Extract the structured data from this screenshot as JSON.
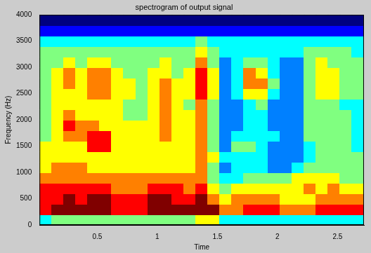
{
  "chart_data": {
    "type": "heatmap",
    "title": "spectrogram of output signal",
    "x_label": "Time",
    "y_label": "Frequency (Hz)",
    "xlim": [
      0.02,
      2.72
    ],
    "xticks": [
      0.5,
      1,
      1.5,
      2,
      2.5
    ],
    "ylim": [
      0,
      4000
    ],
    "yticks": [
      0,
      500,
      1000,
      1500,
      2000,
      2500,
      3000,
      3500,
      4000
    ],
    "grid": false,
    "x": [
      0.07,
      0.17,
      0.27,
      0.37,
      0.47,
      0.57,
      0.67,
      0.77,
      0.87,
      0.97,
      1.07,
      1.17,
      1.27,
      1.37,
      1.47,
      1.57,
      1.67,
      1.77,
      1.87,
      1.97,
      2.07,
      2.17,
      2.27,
      2.37,
      2.47,
      2.57,
      2.67
    ],
    "y": [
      100,
      300,
      500,
      700,
      900,
      1100,
      1300,
      1500,
      1700,
      1900,
      2100,
      2300,
      2500,
      2700,
      2900,
      3100,
      3300,
      3500,
      3700,
      3900
    ],
    "cells": [
      [
        4,
        8,
        8,
        8,
        7,
        6,
        6,
        6,
        5,
        5,
        5,
        5,
        5,
        5,
        5,
        5,
        5,
        4,
        2,
        1
      ],
      [
        5,
        9,
        8,
        8,
        7,
        7,
        6,
        6,
        6,
        6,
        6,
        6,
        6,
        6,
        6,
        5,
        5,
        4,
        2,
        1
      ],
      [
        5,
        9,
        9,
        8,
        7,
        7,
        6,
        6,
        7,
        8,
        7,
        6,
        6,
        7,
        7,
        6,
        5,
        4,
        2,
        1
      ],
      [
        5,
        9,
        8,
        8,
        7,
        7,
        6,
        6,
        7,
        7,
        6,
        6,
        6,
        6,
        6,
        5,
        5,
        4,
        2,
        1
      ],
      [
        5,
        9,
        9,
        8,
        7,
        6,
        6,
        8,
        8,
        7,
        6,
        6,
        7,
        7,
        7,
        6,
        5,
        4,
        2,
        1
      ],
      [
        5,
        9,
        9,
        8,
        7,
        6,
        6,
        8,
        8,
        6,
        6,
        6,
        7,
        7,
        7,
        6,
        5,
        4,
        2,
        1
      ],
      [
        5,
        8,
        8,
        7,
        7,
        6,
        6,
        6,
        6,
        6,
        6,
        6,
        6,
        6,
        6,
        5,
        5,
        4,
        2,
        1
      ],
      [
        5,
        8,
        8,
        7,
        7,
        6,
        6,
        6,
        6,
        6,
        5,
        5,
        6,
        6,
        5,
        5,
        5,
        4,
        2,
        1
      ],
      [
        5,
        8,
        8,
        7,
        7,
        6,
        6,
        6,
        6,
        6,
        5,
        5,
        5,
        5,
        5,
        5,
        5,
        4,
        2,
        1
      ],
      [
        5,
        9,
        9,
        8,
        7,
        6,
        6,
        6,
        6,
        6,
        6,
        6,
        6,
        6,
        6,
        5,
        5,
        4,
        2,
        1
      ],
      [
        5,
        9,
        9,
        8,
        7,
        6,
        6,
        6,
        7,
        7,
        7,
        7,
        7,
        7,
        6,
        6,
        5,
        4,
        2,
        1
      ],
      [
        5,
        9,
        8,
        8,
        7,
        6,
        6,
        6,
        6,
        6,
        6,
        6,
        6,
        6,
        5,
        5,
        5,
        4,
        2,
        1
      ],
      [
        5,
        9,
        8,
        7,
        7,
        6,
        6,
        6,
        6,
        6,
        6,
        5,
        6,
        6,
        6,
        5,
        5,
        4,
        2,
        1
      ],
      [
        6,
        9,
        9,
        8,
        7,
        7,
        7,
        7,
        7,
        7,
        7,
        7,
        8,
        8,
        8,
        7,
        6,
        5,
        2,
        1
      ],
      [
        6,
        9,
        7,
        6,
        5,
        5,
        6,
        5,
        5,
        5,
        5,
        5,
        6,
        6,
        6,
        5,
        5,
        4,
        2,
        1
      ],
      [
        4,
        7,
        6,
        5,
        4,
        3,
        4,
        3,
        3,
        3,
        3,
        3,
        3,
        3,
        3,
        3,
        4,
        4,
        2,
        1
      ],
      [
        4,
        7,
        7,
        6,
        4,
        4,
        4,
        5,
        4,
        3,
        3,
        3,
        4,
        4,
        4,
        4,
        4,
        4,
        2,
        1
      ],
      [
        4,
        8,
        7,
        6,
        5,
        4,
        4,
        5,
        4,
        4,
        4,
        4,
        6,
        7,
        7,
        5,
        4,
        4,
        2,
        1
      ],
      [
        4,
        8,
        7,
        6,
        5,
        4,
        4,
        4,
        4,
        4,
        4,
        5,
        6,
        7,
        6,
        5,
        4,
        4,
        2,
        1
      ],
      [
        4,
        8,
        7,
        6,
        5,
        3,
        3,
        3,
        4,
        3,
        3,
        3,
        4,
        5,
        4,
        4,
        4,
        4,
        2,
        1
      ],
      [
        4,
        7,
        6,
        6,
        5,
        3,
        3,
        3,
        3,
        3,
        3,
        3,
        3,
        3,
        3,
        3,
        4,
        4,
        2,
        1
      ],
      [
        4,
        7,
        6,
        6,
        6,
        4,
        3,
        3,
        3,
        3,
        3,
        3,
        3,
        3,
        3,
        3,
        4,
        4,
        2,
        1
      ],
      [
        4,
        7,
        6,
        7,
        6,
        5,
        4,
        4,
        5,
        5,
        5,
        5,
        5,
        5,
        5,
        5,
        5,
        4,
        2,
        1
      ],
      [
        4,
        8,
        7,
        6,
        6,
        5,
        5,
        5,
        5,
        5,
        5,
        5,
        6,
        6,
        6,
        6,
        5,
        4,
        2,
        1
      ],
      [
        4,
        8,
        7,
        7,
        6,
        5,
        5,
        5,
        5,
        5,
        5,
        5,
        6,
        6,
        6,
        5,
        5,
        4,
        2,
        1
      ],
      [
        4,
        8,
        7,
        6,
        5,
        5,
        5,
        5,
        5,
        5,
        5,
        4,
        5,
        5,
        5,
        5,
        5,
        4,
        2,
        1
      ],
      [
        4,
        8,
        7,
        6,
        5,
        5,
        5,
        4,
        4,
        4,
        4,
        4,
        5,
        5,
        5,
        5,
        4,
        4,
        2,
        1
      ]
    ]
  }
}
